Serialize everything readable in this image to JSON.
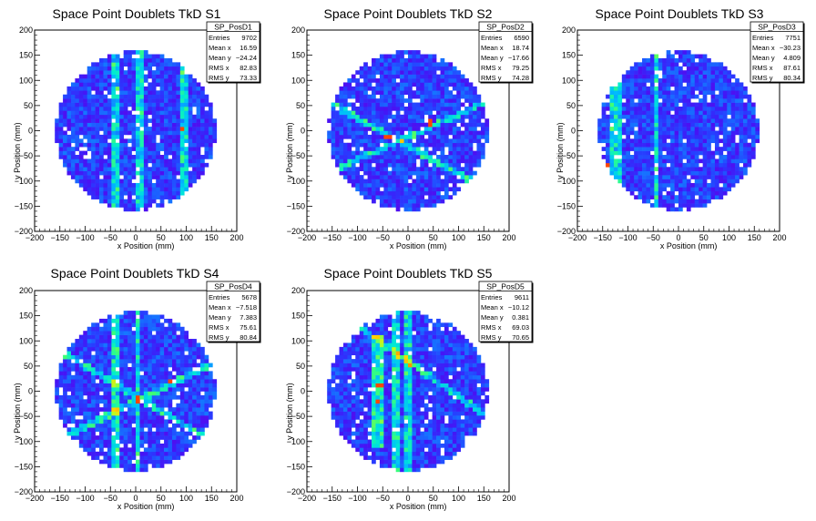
{
  "chart_data": [
    {
      "type": "heatmap",
      "title": "Space Point Doublets TkD S1",
      "xlabel": "x Position (mm)",
      "ylabel": "y Position (mm)",
      "xlim": [
        -200,
        200
      ],
      "ylim": [
        -200,
        200
      ],
      "x_ticks": [
        "−200",
        "−150",
        "−100",
        "−50",
        "0",
        "50",
        "100",
        "150",
        "200"
      ],
      "y_ticks": [
        "−200",
        "−150",
        "−100",
        "−50",
        "0",
        "50",
        "100",
        "150",
        "200"
      ],
      "stats": {
        "name": "SP_PosD1",
        "rows": [
          [
            "Entries",
            "9702"
          ],
          [
            "Mean x",
            "16.59"
          ],
          [
            "Mean y",
            "−24.24"
          ],
          [
            "RMS x",
            "82.83"
          ],
          [
            "RMS y",
            "73.33"
          ]
        ]
      },
      "features": {
        "vlines": [
          96,
          8,
          -40
        ],
        "lines": [],
        "band": null,
        "hot": [
          [
            92,
            5
          ]
        ]
      }
    },
    {
      "type": "heatmap",
      "title": "Space Point Doublets TkD S2",
      "xlabel": "x Position (mm)",
      "ylabel": "y Position (mm)",
      "xlim": [
        -200,
        200
      ],
      "ylim": [
        -200,
        200
      ],
      "x_ticks": [
        "−200",
        "−150",
        "−100",
        "−50",
        "0",
        "50",
        "100",
        "150",
        "200"
      ],
      "y_ticks": [
        "−200",
        "−150",
        "−100",
        "−50",
        "0",
        "50",
        "100",
        "150",
        "200"
      ],
      "stats": {
        "name": "SP_PosD2",
        "rows": [
          [
            "Entries",
            "6590"
          ],
          [
            "Mean x",
            "18.74"
          ],
          [
            "Mean y",
            "−17.66"
          ],
          [
            "RMS x",
            "79.25"
          ],
          [
            "RMS y",
            "74.28"
          ]
        ]
      },
      "features": {
        "vlines": [],
        "lines": [
          [
            0.45,
            -12
          ],
          [
            -0.55,
            -30
          ]
        ],
        "band": null,
        "hot": [
          [
            45,
            15
          ],
          [
            -40,
            -10
          ]
        ]
      }
    },
    {
      "type": "heatmap",
      "title": "Space Point Doublets TkD S3",
      "xlabel": "x Position (mm)",
      "ylabel": "y Position (mm)",
      "xlim": [
        -200,
        200
      ],
      "ylim": [
        -200,
        200
      ],
      "x_ticks": [
        "−200",
        "−150",
        "−100",
        "−50",
        "0",
        "50",
        "100",
        "150",
        "200"
      ],
      "y_ticks": [
        "−200",
        "−150",
        "−100",
        "−50",
        "0",
        "50",
        "100",
        "150",
        "200"
      ],
      "stats": {
        "name": "SP_PosD3",
        "rows": [
          [
            "Entries",
            "7751"
          ],
          [
            "Mean x",
            "−30.23"
          ],
          [
            "Mean y",
            "4.809"
          ],
          [
            "RMS x",
            "87.61"
          ],
          [
            "RMS y",
            "80.34"
          ]
        ]
      },
      "features": {
        "vlines": [
          -130,
          -120,
          -45
        ],
        "lines": [],
        "band": null,
        "hot": [
          [
            -138,
            -70
          ]
        ]
      }
    },
    {
      "type": "heatmap",
      "title": "Space Point Doublets TkD S4",
      "xlabel": "x Position (mm)",
      "ylabel": "y Position (mm)",
      "xlim": [
        -200,
        200
      ],
      "ylim": [
        -200,
        200
      ],
      "x_ticks": [
        "−200",
        "−150",
        "−100",
        "−50",
        "0",
        "50",
        "100",
        "150",
        "200"
      ],
      "y_ticks": [
        "−200",
        "−150",
        "−100",
        "−50",
        "0",
        "50",
        "100",
        "150",
        "200"
      ],
      "stats": {
        "name": "SP_PosD4",
        "rows": [
          [
            "Entries",
            "5678"
          ],
          [
            "Mean x",
            "−7.518"
          ],
          [
            "Mean y",
            "7.383"
          ],
          [
            "RMS x",
            "75.61"
          ],
          [
            "RMS y",
            "80.84"
          ]
        ]
      },
      "features": {
        "vlines": [
          5,
          -40
        ],
        "lines": [
          [
            0.5,
            -20
          ],
          [
            -0.6,
            -10
          ]
        ],
        "band": null,
        "hot": [
          [
            5,
            -15
          ],
          [
            70,
            20
          ]
        ]
      }
    },
    {
      "type": "heatmap",
      "title": "Space Point Doublets TkD S5",
      "xlabel": "x Position (mm)",
      "ylabel": "y Position (mm)",
      "xlim": [
        -200,
        200
      ],
      "ylim": [
        -200,
        200
      ],
      "x_ticks": [
        "−200",
        "−150",
        "−100",
        "−50",
        "0",
        "50",
        "100",
        "150",
        "200"
      ],
      "y_ticks": [
        "−200",
        "−150",
        "−100",
        "−50",
        "0",
        "50",
        "100",
        "150",
        "200"
      ],
      "stats": {
        "name": "SP_PosD5",
        "rows": [
          [
            "Entries",
            "9611"
          ],
          [
            "Mean x",
            "−10.12"
          ],
          [
            "Mean y",
            "0.381"
          ],
          [
            "RMS x",
            "69.03"
          ],
          [
            "RMS y",
            "70.65"
          ]
        ]
      },
      "features": {
        "vlines": [
          -25,
          0
        ],
        "lines": [
          [
            -0.7,
            60
          ]
        ],
        "band": [
          -75,
          -45
        ],
        "hot": [
          [
            -55,
            10
          ],
          [
            -60,
            -20
          ]
        ]
      }
    }
  ]
}
